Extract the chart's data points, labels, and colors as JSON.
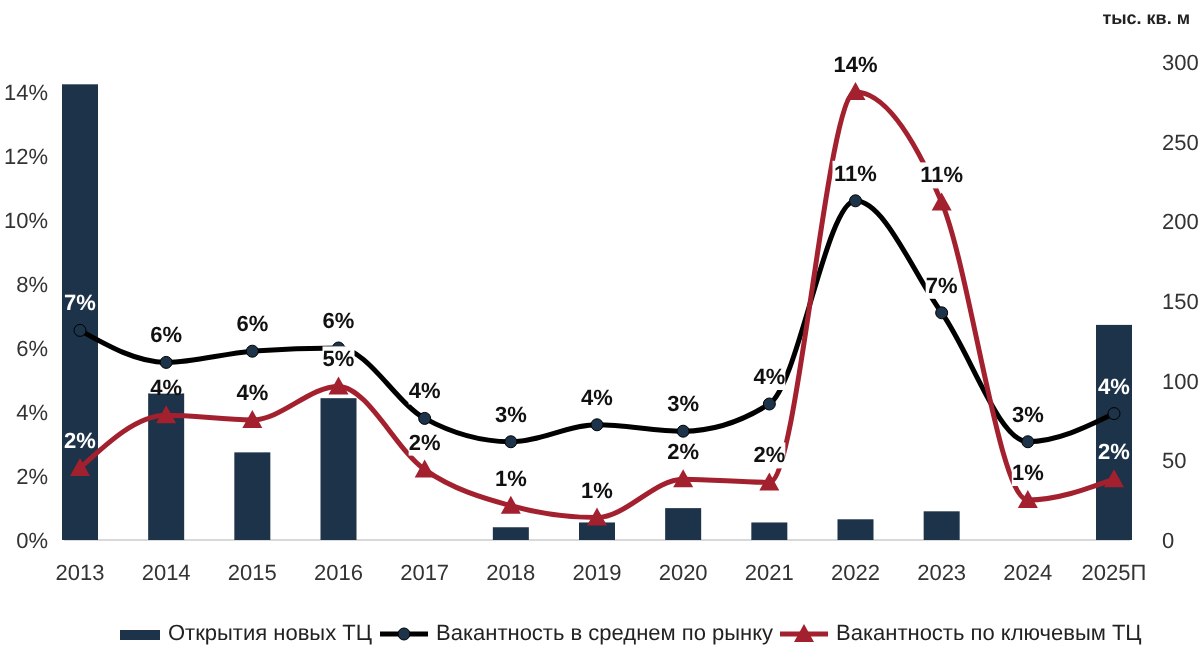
{
  "chart_data": {
    "type": "bar",
    "y2label": "тыс. кв. м",
    "categories": [
      "2013",
      "2014",
      "2015",
      "2016",
      "2017",
      "2018",
      "2019",
      "2020",
      "2021",
      "2022",
      "2023",
      "2024",
      "2025П"
    ],
    "series": [
      {
        "name": "Открытия новых ТЦ",
        "axis": "y2",
        "color": "#1c3349",
        "values": [
          286,
          92,
          55,
          89,
          0,
          8,
          11,
          20,
          11,
          13,
          18,
          0,
          135
        ]
      },
      {
        "name": "Вакантность в среднем по рынку",
        "type": "line",
        "marker": "circle",
        "color": "#000000",
        "values": [
          6.55,
          5.55,
          5.9,
          6.0,
          3.8,
          3.07,
          3.6,
          3.4,
          4.25,
          10.6,
          7.1,
          3.07,
          3.95
        ],
        "value_labels": [
          "7%",
          "6%",
          "6%",
          "6%",
          "4%",
          "3%",
          "4%",
          "3%",
          "4%",
          "11%",
          "7%",
          "3%",
          "4%"
        ]
      },
      {
        "name": "Вакантность по ключевым ТЦ",
        "type": "line",
        "marker": "triangle",
        "color": "#a3212f",
        "values": [
          2.25,
          3.9,
          3.75,
          4.8,
          2.2,
          1.07,
          0.7,
          1.9,
          1.8,
          14,
          10.55,
          1.25,
          1.9
        ],
        "value_labels": [
          "2%",
          "4%",
          "4%",
          "5%",
          "2%",
          "1%",
          "1%",
          "2%",
          "2%",
          "14%",
          "11%",
          "1%",
          "2%"
        ]
      }
    ],
    "ylim": [
      0,
      14
    ],
    "yticks": [
      {
        "value": 0,
        "label": "0%"
      },
      {
        "value": 2,
        "label": "2%"
      },
      {
        "value": 4,
        "label": "4%"
      },
      {
        "value": 6,
        "label": "6%"
      },
      {
        "value": 8,
        "label": "8%"
      },
      {
        "value": 10,
        "label": "10%"
      },
      {
        "value": 12,
        "label": "12%"
      },
      {
        "value": 14,
        "label": "14%"
      }
    ],
    "y2lim": [
      0,
      300
    ],
    "y2ticks": [
      0,
      50,
      100,
      150,
      200,
      250,
      300
    ],
    "legend": "bottom"
  }
}
